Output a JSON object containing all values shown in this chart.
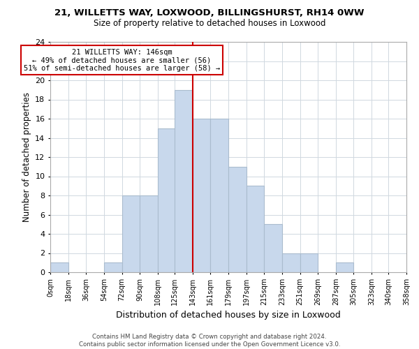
{
  "title1": "21, WILLETTS WAY, LOXWOOD, BILLINGSHURST, RH14 0WW",
  "title2": "Size of property relative to detached houses in Loxwood",
  "xlabel": "Distribution of detached houses by size in Loxwood",
  "ylabel": "Number of detached properties",
  "bin_edges": [
    0,
    18,
    36,
    54,
    72,
    90,
    108,
    125,
    143,
    161,
    179,
    197,
    215,
    233,
    251,
    269,
    287,
    305,
    323,
    340,
    358
  ],
  "counts": [
    1,
    0,
    0,
    1,
    8,
    8,
    15,
    19,
    16,
    16,
    11,
    9,
    5,
    2,
    2,
    0,
    1,
    0,
    0,
    0
  ],
  "bar_color": "#c8d8ec",
  "bar_edge_color": "#aabcce",
  "property_line_x": 143,
  "property_line_color": "#cc0000",
  "annotation_text": "21 WILLETTS WAY: 146sqm\n← 49% of detached houses are smaller (56)\n51% of semi-detached houses are larger (58) →",
  "annotation_box_color": "#ffffff",
  "annotation_box_edge_color": "#cc0000",
  "ylim": [
    0,
    24
  ],
  "yticks": [
    0,
    2,
    4,
    6,
    8,
    10,
    12,
    14,
    16,
    18,
    20,
    22,
    24
  ],
  "tick_labels": [
    "0sqm",
    "18sqm",
    "36sqm",
    "54sqm",
    "72sqm",
    "90sqm",
    "108sqm",
    "125sqm",
    "143sqm",
    "161sqm",
    "179sqm",
    "197sqm",
    "215sqm",
    "233sqm",
    "251sqm",
    "269sqm",
    "287sqm",
    "305sqm",
    "323sqm",
    "340sqm",
    "358sqm"
  ],
  "footnote1": "Contains HM Land Registry data © Crown copyright and database right 2024.",
  "footnote2": "Contains public sector information licensed under the Open Government Licence v3.0.",
  "background_color": "#ffffff",
  "grid_color": "#d0d8e0"
}
